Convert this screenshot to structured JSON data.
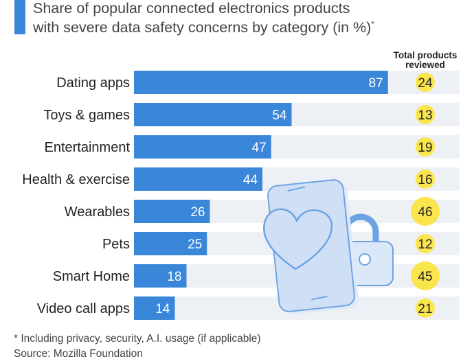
{
  "title": {
    "line1": "Share of popular connected electronics products",
    "line2": "with severe data safety concerns by category (in %)",
    "marker": "*"
  },
  "total_header": {
    "line1": "Total products",
    "line2": "reviewed"
  },
  "footnote": "* Including privacy, security, A.I. usage (if applicable)",
  "source": "Source: Mozilla Foundation",
  "colors": {
    "bar": "#3a86d9",
    "row_bg": "#edf0f5",
    "badge": "#fbe54d",
    "accent": "#3a86d9",
    "illustration_fill": "#cfe0f6",
    "illustration_stroke": "#6da3e3"
  },
  "illustration": "smartphone-heart-padlock-illustration",
  "chart_data": {
    "type": "bar",
    "orientation": "horizontal",
    "categories": [
      "Dating apps",
      "Toys & games",
      "Entertainment",
      "Health & exercise",
      "Wearables",
      "Pets",
      "Smart Home",
      "Video call apps"
    ],
    "values": [
      87,
      54,
      47,
      44,
      26,
      25,
      18,
      14
    ],
    "total_products_reviewed": [
      24,
      13,
      19,
      16,
      46,
      12,
      45,
      21
    ],
    "xlim": [
      0,
      100
    ],
    "grid": false,
    "legend": "none"
  }
}
